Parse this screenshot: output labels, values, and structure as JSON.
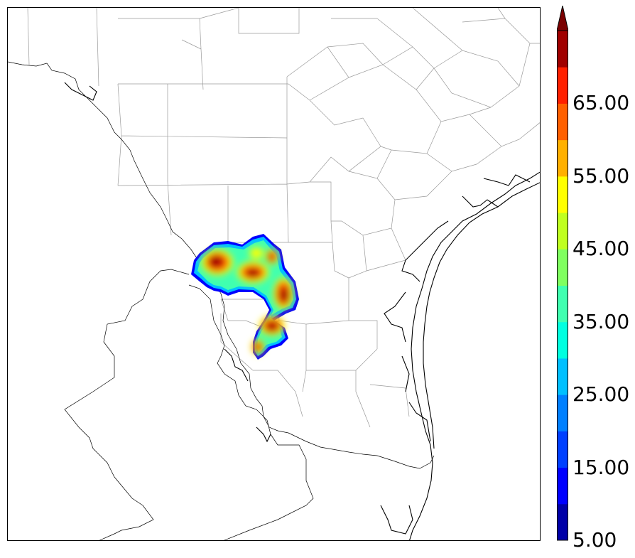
{
  "colorbar": {
    "levels": [
      5,
      10,
      15,
      20,
      25,
      30,
      35,
      40,
      45,
      50,
      55,
      60,
      65,
      70
    ],
    "colors": [
      "#0000a8",
      "#0000ff",
      "#0040ff",
      "#0080ff",
      "#00c0ff",
      "#00ffe0",
      "#40ffb0",
      "#80ff60",
      "#c0ff20",
      "#ffff00",
      "#ffb000",
      "#ff6000",
      "#ff2000",
      "#a00000"
    ],
    "extend_color": "#7a0000",
    "tick_labels": [
      "5.00",
      "15.00",
      "25.00",
      "35.00",
      "45.00",
      "55.00",
      "65.00"
    ],
    "extend": "max"
  },
  "map": {
    "background": "#ffffff",
    "county_line_color": "#999999",
    "coast_color": "#000000"
  }
}
